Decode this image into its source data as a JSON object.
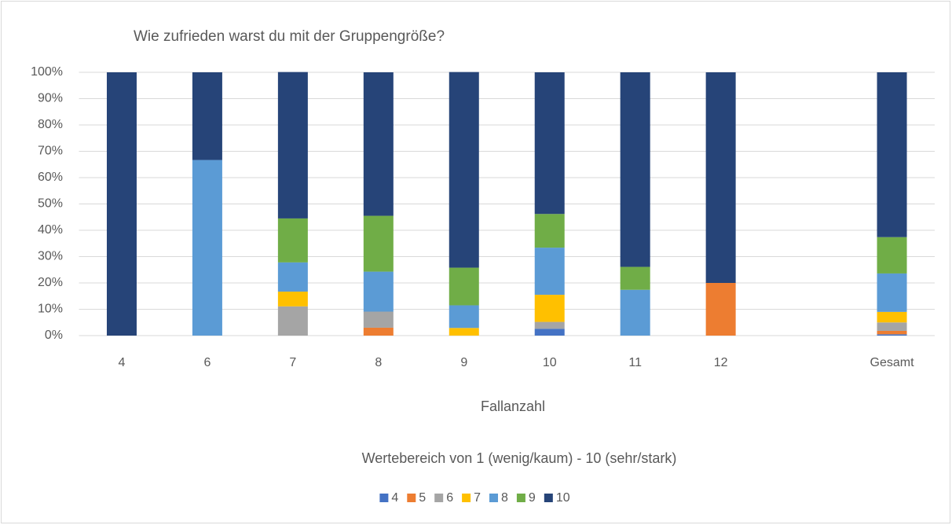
{
  "chart_data": {
    "type": "stacked_bar_100",
    "title": "Wie zufrieden warst du mit der Gruppengröße?",
    "x_label": "Fallanzahl",
    "legend_title": "Wertebereich von 1 (wenig/kaum) - 10 (sehr/stark)",
    "categories": [
      "4",
      "6",
      "7",
      "8",
      "9",
      "10",
      "11",
      "12",
      null,
      "Gesamt"
    ],
    "series": [
      {
        "name": "4",
        "color": "#4472c4",
        "values": [
          0,
          0,
          0,
          0,
          0,
          2.6,
          0,
          0,
          null,
          0.5
        ]
      },
      {
        "name": "5",
        "color": "#ed7d31",
        "values": [
          0,
          0,
          0,
          3.0,
          0,
          0,
          0,
          20,
          null,
          1.3
        ]
      },
      {
        "name": "6",
        "color": "#a5a5a5",
        "values": [
          0,
          0,
          11.1,
          6.1,
          0,
          2.6,
          0,
          0,
          null,
          3.2
        ]
      },
      {
        "name": "7",
        "color": "#ffc000",
        "values": [
          0,
          0,
          5.6,
          0,
          2.9,
          10.3,
          0,
          0,
          null,
          4.0
        ]
      },
      {
        "name": "8",
        "color": "#5b9bd5",
        "values": [
          0,
          66.7,
          11.1,
          15.2,
          8.6,
          17.9,
          17.4,
          0,
          null,
          14.6
        ]
      },
      {
        "name": "9",
        "color": "#70ad47",
        "values": [
          0,
          0,
          16.7,
          21.2,
          14.3,
          12.8,
          8.7,
          0,
          null,
          13.8
        ]
      },
      {
        "name": "10",
        "color": "#264478",
        "values": [
          100,
          33.3,
          55.6,
          54.5,
          74.3,
          53.8,
          73.9,
          80,
          null,
          62.6
        ]
      }
    ],
    "ylim": [
      0,
      100
    ],
    "yticks": [
      {
        "value": 0,
        "label": "0%"
      },
      {
        "value": 10,
        "label": "10%"
      },
      {
        "value": 20,
        "label": "20%"
      },
      {
        "value": 30,
        "label": "30%"
      },
      {
        "value": 40,
        "label": "40%"
      },
      {
        "value": 50,
        "label": "50%"
      },
      {
        "value": 60,
        "label": "60%"
      },
      {
        "value": 70,
        "label": "70%"
      },
      {
        "value": 80,
        "label": "80%"
      },
      {
        "value": 90,
        "label": "90%"
      },
      {
        "value": 100,
        "label": "100%"
      }
    ],
    "grid": true,
    "legend": "bottom"
  }
}
